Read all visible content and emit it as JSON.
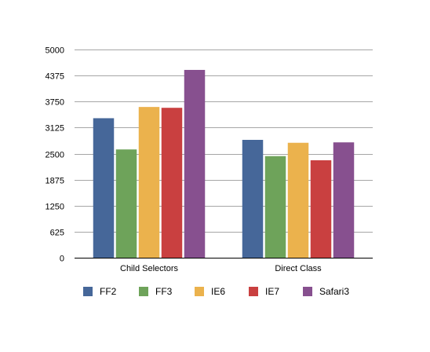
{
  "chart_data": {
    "type": "bar",
    "categories": [
      "Child Selectors",
      "Direct Class"
    ],
    "series": [
      {
        "name": "FF2",
        "color": "#466799",
        "values": [
          3350,
          2830
        ]
      },
      {
        "name": "FF3",
        "color": "#6ea35a",
        "values": [
          2600,
          2440
        ]
      },
      {
        "name": "IE6",
        "color": "#ebb24d",
        "values": [
          3620,
          2760
        ]
      },
      {
        "name": "IE7",
        "color": "#c94040",
        "values": [
          3600,
          2340
        ]
      },
      {
        "name": "Safari3",
        "color": "#87508f",
        "values": [
          4510,
          2770
        ]
      }
    ],
    "yticks": [
      "0",
      "625",
      "1250",
      "1875",
      "2500",
      "3125",
      "3750",
      "4375",
      "5000"
    ],
    "ylim": [
      0,
      5000
    ],
    "grid": true,
    "legend_position": "bottom",
    "title": "",
    "xlabel": "",
    "ylabel": ""
  }
}
